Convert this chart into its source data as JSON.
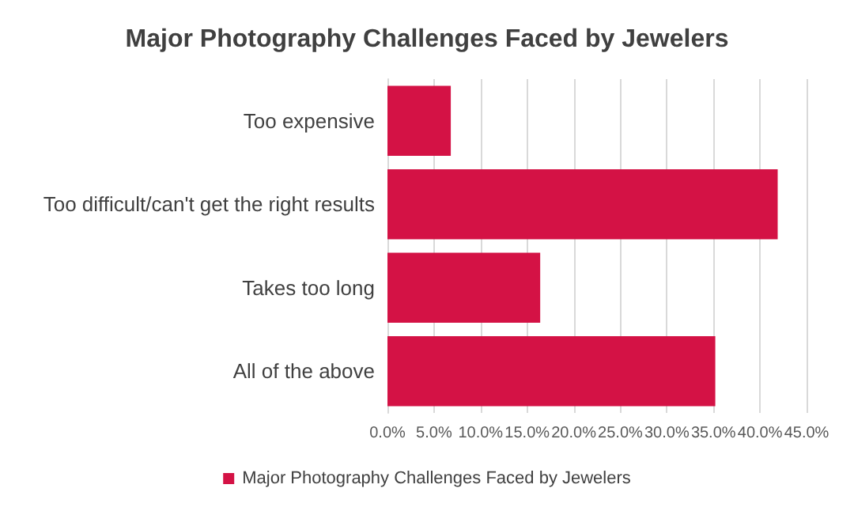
{
  "chart_data": {
    "type": "bar",
    "orientation": "horizontal",
    "title": "Major Photography Challenges Faced by Jewelers",
    "categories": [
      "Too expensive",
      "Too difficult/can't get the right results",
      "Takes too long",
      "All of the above"
    ],
    "series": [
      {
        "name": "Major Photography Challenges Faced by Jewelers",
        "color": "#d41245",
        "values": [
          6.8,
          41.9,
          16.4,
          35.2
        ]
      }
    ],
    "xlim": [
      0,
      45
    ],
    "xticks": [
      {
        "value": 0,
        "label": "0.0%"
      },
      {
        "value": 5,
        "label": "5.0%"
      },
      {
        "value": 10,
        "label": "10.0%"
      },
      {
        "value": 15,
        "label": "15.0%"
      },
      {
        "value": 20,
        "label": "20.0%"
      },
      {
        "value": 25,
        "label": "25.0%"
      },
      {
        "value": 30,
        "label": "30.0%"
      },
      {
        "value": 35,
        "label": "35.0%"
      },
      {
        "value": 40,
        "label": "40.0%"
      },
      {
        "value": 45,
        "label": "45.0%"
      }
    ],
    "grid": "x",
    "legend": "bottom"
  }
}
